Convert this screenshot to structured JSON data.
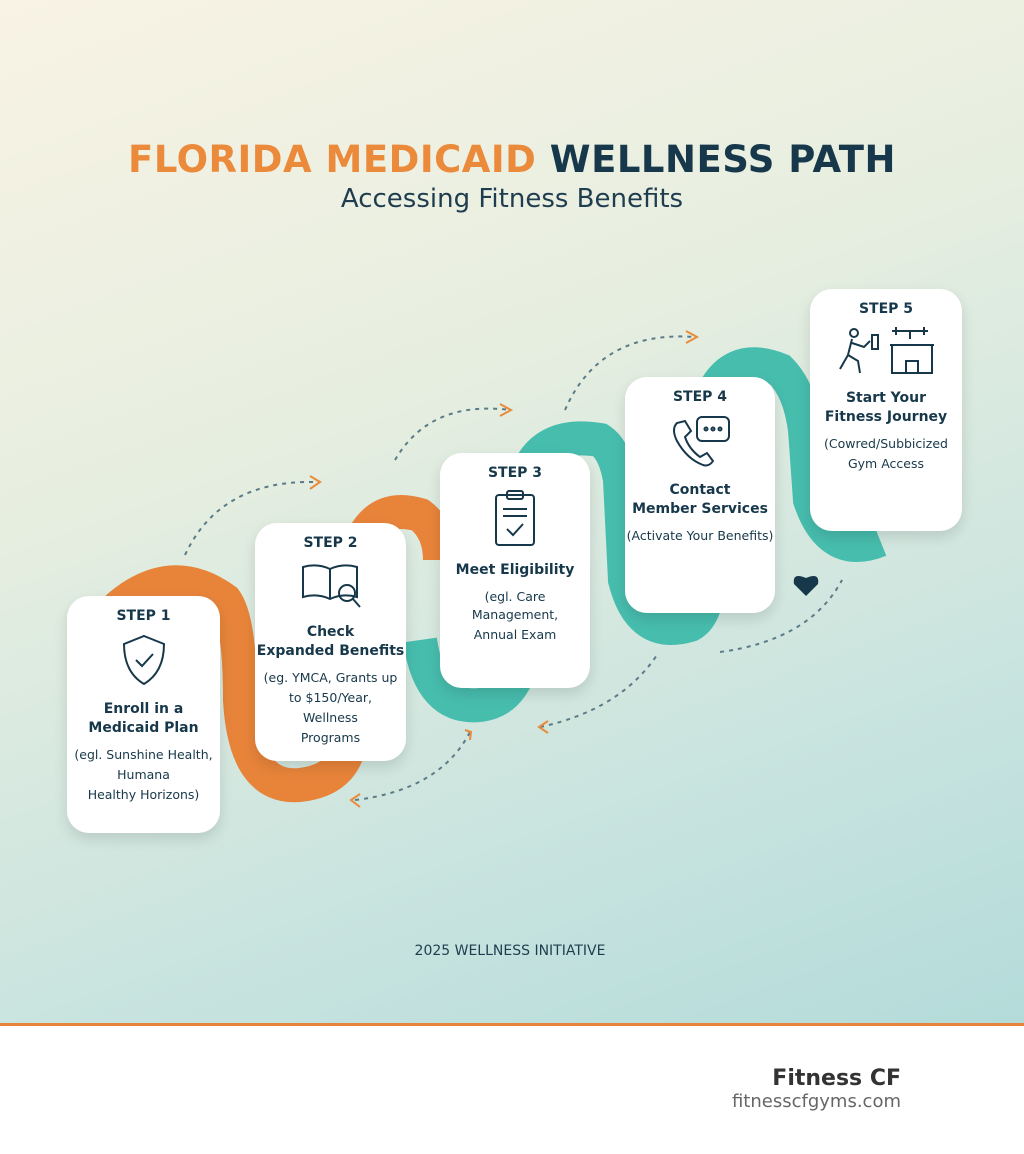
{
  "header": {
    "title_part1": "FLORIDA MEDICAID",
    "title_part2": "WELLNESS PATH",
    "subtitle": "Accessing Fitness Benefits"
  },
  "steps": [
    {
      "label": "STEP 1",
      "title": [
        "Enroll in a",
        "Medicaid Plan"
      ],
      "description": [
        "(egl. Sunshine Health,",
        "Humana",
        "Healthy Horizons)"
      ]
    },
    {
      "label": "STEP 2",
      "title": [
        "Check",
        "Expanded Benefits"
      ],
      "description": [
        "(eg. YMCA, Grants up",
        "to $150/Year,",
        "Wellness",
        "Programs"
      ]
    },
    {
      "label": "STEP 3",
      "title": [
        "Meet Eligibility"
      ],
      "description": [
        "(egl. Care Management,",
        "Annual Exam"
      ]
    },
    {
      "label": "STEP 4",
      "title": [
        "Contact",
        "Member Services"
      ],
      "description": [
        "(Activate Your Benefits)"
      ]
    },
    {
      "label": "STEP 5",
      "title": [
        "Start Your",
        "Fitness Journey"
      ],
      "description": [
        "(Cowred/Subbicized",
        "Gym Access"
      ]
    }
  ],
  "footer": {
    "initiative": "2025 WELLNESS INITIATIVE",
    "brand": "Fitness CF",
    "website": "fitnesscfgyms.com"
  }
}
